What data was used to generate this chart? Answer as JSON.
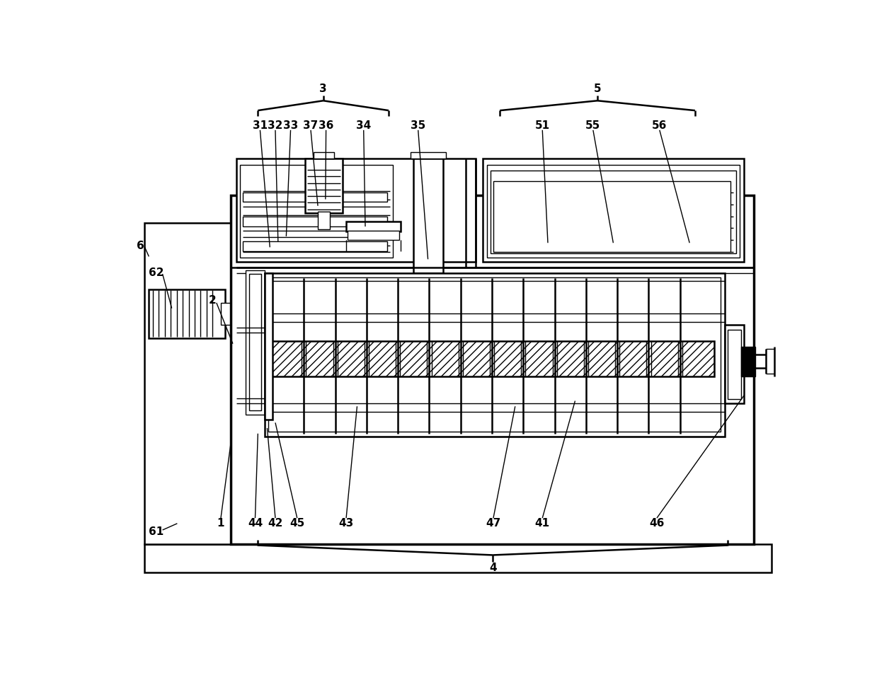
{
  "bg_color": "#ffffff",
  "lw_thick": 2.5,
  "lw_main": 1.8,
  "lw_thin": 1.0,
  "fs": 11,
  "fw": "bold"
}
